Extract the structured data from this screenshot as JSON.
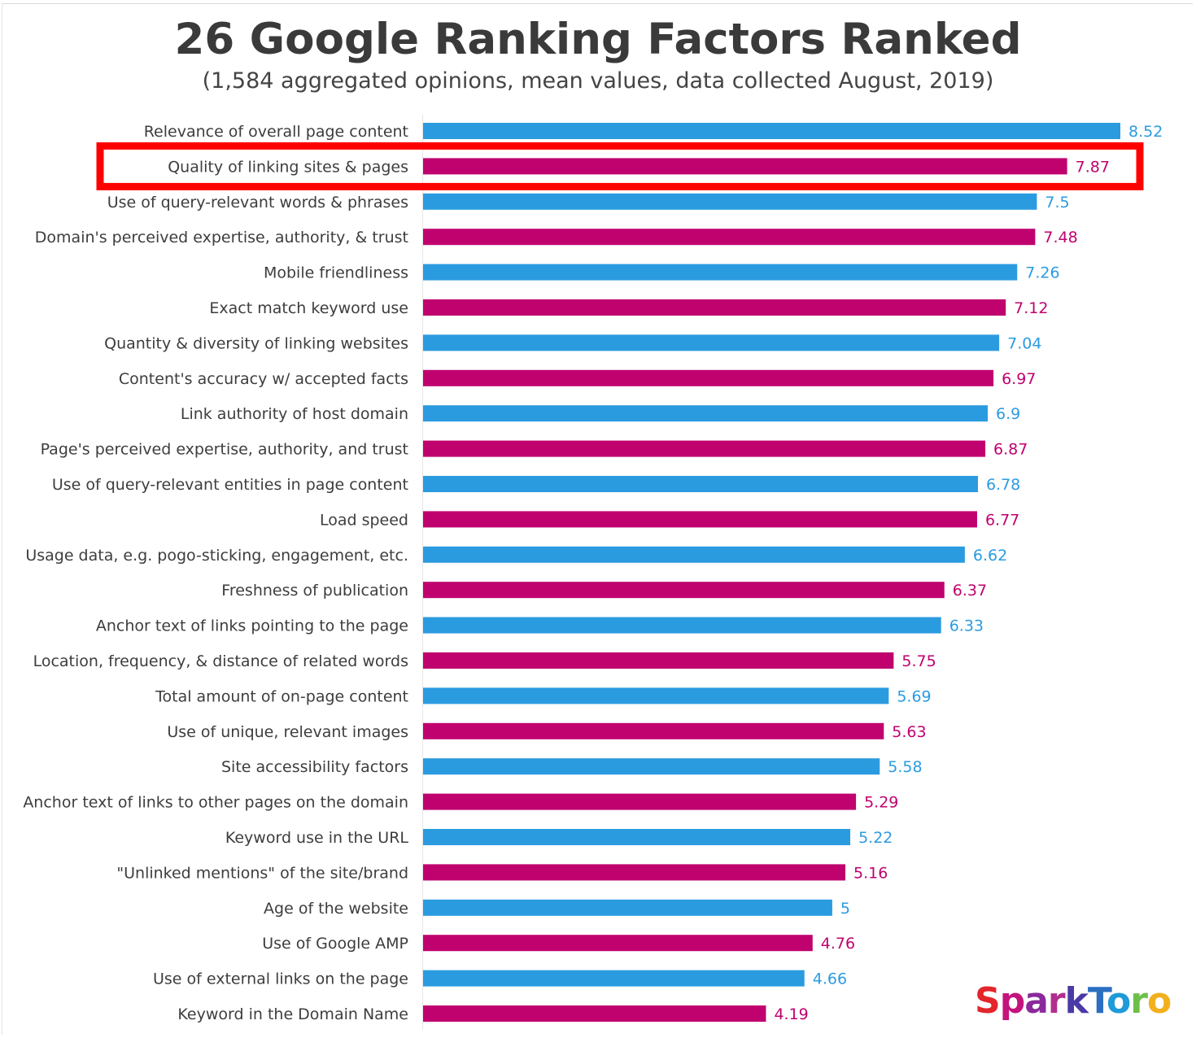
{
  "colors": {
    "blue": "#2b9be0",
    "magenta": "#c0026f",
    "highlight": "#ff0000",
    "label_blue": "#2b9be0",
    "label_magenta": "#c0026f"
  },
  "logo": {
    "text": "SparkToro",
    "letter_colors": [
      "#e2262b",
      "#c4147c",
      "#8a2a9b",
      "#b22e8e",
      "#4a3aa6",
      "#2a6fc0",
      "#1f9bd7",
      "#6cc04a",
      "#f2b01e"
    ]
  },
  "chart_data": {
    "type": "bar",
    "orientation": "horizontal",
    "title": "26 Google Ranking Factors Ranked",
    "subtitle": "(1,584 aggregated opinions, mean values, data collected August, 2019)",
    "xlim": [
      0,
      8.52
    ],
    "grid": false,
    "legend": "none",
    "alternating_colors": [
      "blue",
      "magenta"
    ],
    "highlighted_index": 1,
    "categories": [
      "Relevance of overall page content",
      "Quality of linking sites & pages",
      "Use of query-relevant words & phrases",
      "Domain's perceived expertise, authority, & trust",
      "Mobile friendliness",
      "Exact match keyword use",
      "Quantity & diversity of linking websites",
      "Content's accuracy w/ accepted facts",
      "Link authority of host domain",
      "Page's perceived expertise, authority, and trust",
      "Use of query-relevant entities in page content",
      "Load speed",
      "Usage data, e.g. pogo-sticking, engagement, etc.",
      "Freshness of publication",
      "Anchor text of links pointing to the page",
      "Location, frequency, & distance of related words",
      "Total amount of on-page content",
      "Use of unique, relevant images",
      "Site accessibility factors",
      "Anchor text of links to other pages on the domain",
      "Keyword use in the URL",
      "\"Unlinked mentions\" of the site/brand",
      "Age of the website",
      "Use of Google AMP",
      "Use of external links on the page",
      "Keyword in the Domain Name"
    ],
    "values": [
      8.52,
      7.87,
      7.5,
      7.48,
      7.26,
      7.12,
      7.04,
      6.97,
      6.9,
      6.87,
      6.78,
      6.77,
      6.62,
      6.37,
      6.33,
      5.75,
      5.69,
      5.63,
      5.58,
      5.29,
      5.22,
      5.16,
      5,
      4.76,
      4.66,
      4.19
    ],
    "value_labels": [
      "8.52",
      "7.87",
      "7.5",
      "7.48",
      "7.26",
      "7.12",
      "7.04",
      "6.97",
      "6.9",
      "6.87",
      "6.78",
      "6.77",
      "6.62",
      "6.37",
      "6.33",
      "5.75",
      "5.69",
      "5.63",
      "5.58",
      "5.29",
      "5.22",
      "5.16",
      "5",
      "4.76",
      "4.66",
      "4.19"
    ]
  }
}
